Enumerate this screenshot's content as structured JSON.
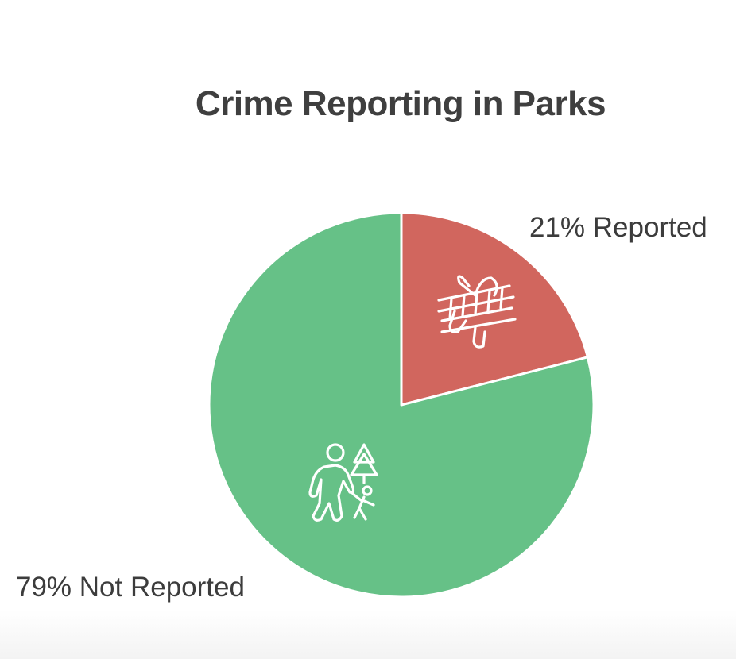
{
  "chart_data": {
    "type": "pie",
    "title": "Crime Reporting in Parks",
    "slices": [
      {
        "label": "Reported",
        "value": 21,
        "label_text": "21% Reported",
        "color": "#d1665e",
        "icon": "crime-scene-tape-icon"
      },
      {
        "label": "Not Reported",
        "value": 79,
        "label_text": "79% Not Reported",
        "color": "#66c187",
        "icon": "park-walk-icon"
      }
    ],
    "start_angle": "12 o'clock",
    "direction": "clockwise",
    "slice_border_color": "#ffffff",
    "legend": "none"
  }
}
